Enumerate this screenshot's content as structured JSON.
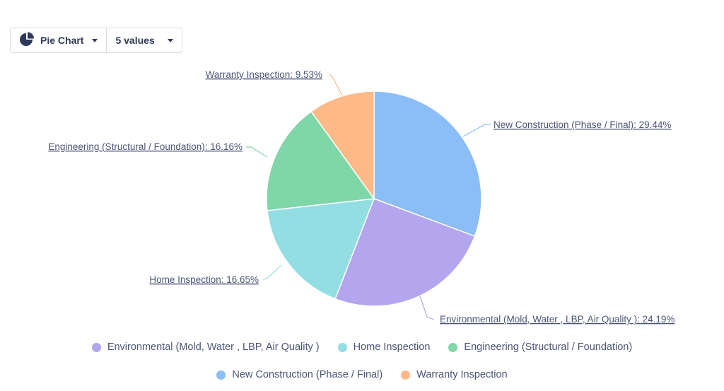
{
  "toolbar": {
    "chart_type_label": "Pie Chart",
    "values_label": "5 values"
  },
  "chart_data": {
    "type": "pie",
    "slices": [
      {
        "label": "New Construction (Phase / Final)",
        "value": 29.44,
        "display": "New Construction (Phase / Final): 29.44%",
        "color": "#8bbdf6"
      },
      {
        "label": "Environmental (Mold, Water , LBP, Air Quality )",
        "value": 24.19,
        "display": "Environmental (Mold, Water , LBP, Air Quality ): 24.19%",
        "color": "#b3a5ee"
      },
      {
        "label": "Home Inspection",
        "value": 16.65,
        "display": "Home Inspection: 16.65%",
        "color": "#93dee2"
      },
      {
        "label": "Engineering (Structural / Foundation)",
        "value": 16.16,
        "display": "Engineering (Structural / Foundation): 16.16%",
        "color": "#7fd6a8"
      },
      {
        "label": "Warranty Inspection",
        "value": 9.53,
        "display": "Warranty Inspection: 9.53%",
        "color": "#fdb987"
      }
    ],
    "legend": {
      "placement": "bottom",
      "rows": [
        [
          "Environmental (Mold, Water , LBP, Air Quality )",
          "Home Inspection",
          "Engineering (Structural / Foundation)"
        ],
        [
          "New Construction (Phase / Final)",
          "Warranty Inspection"
        ]
      ]
    }
  }
}
